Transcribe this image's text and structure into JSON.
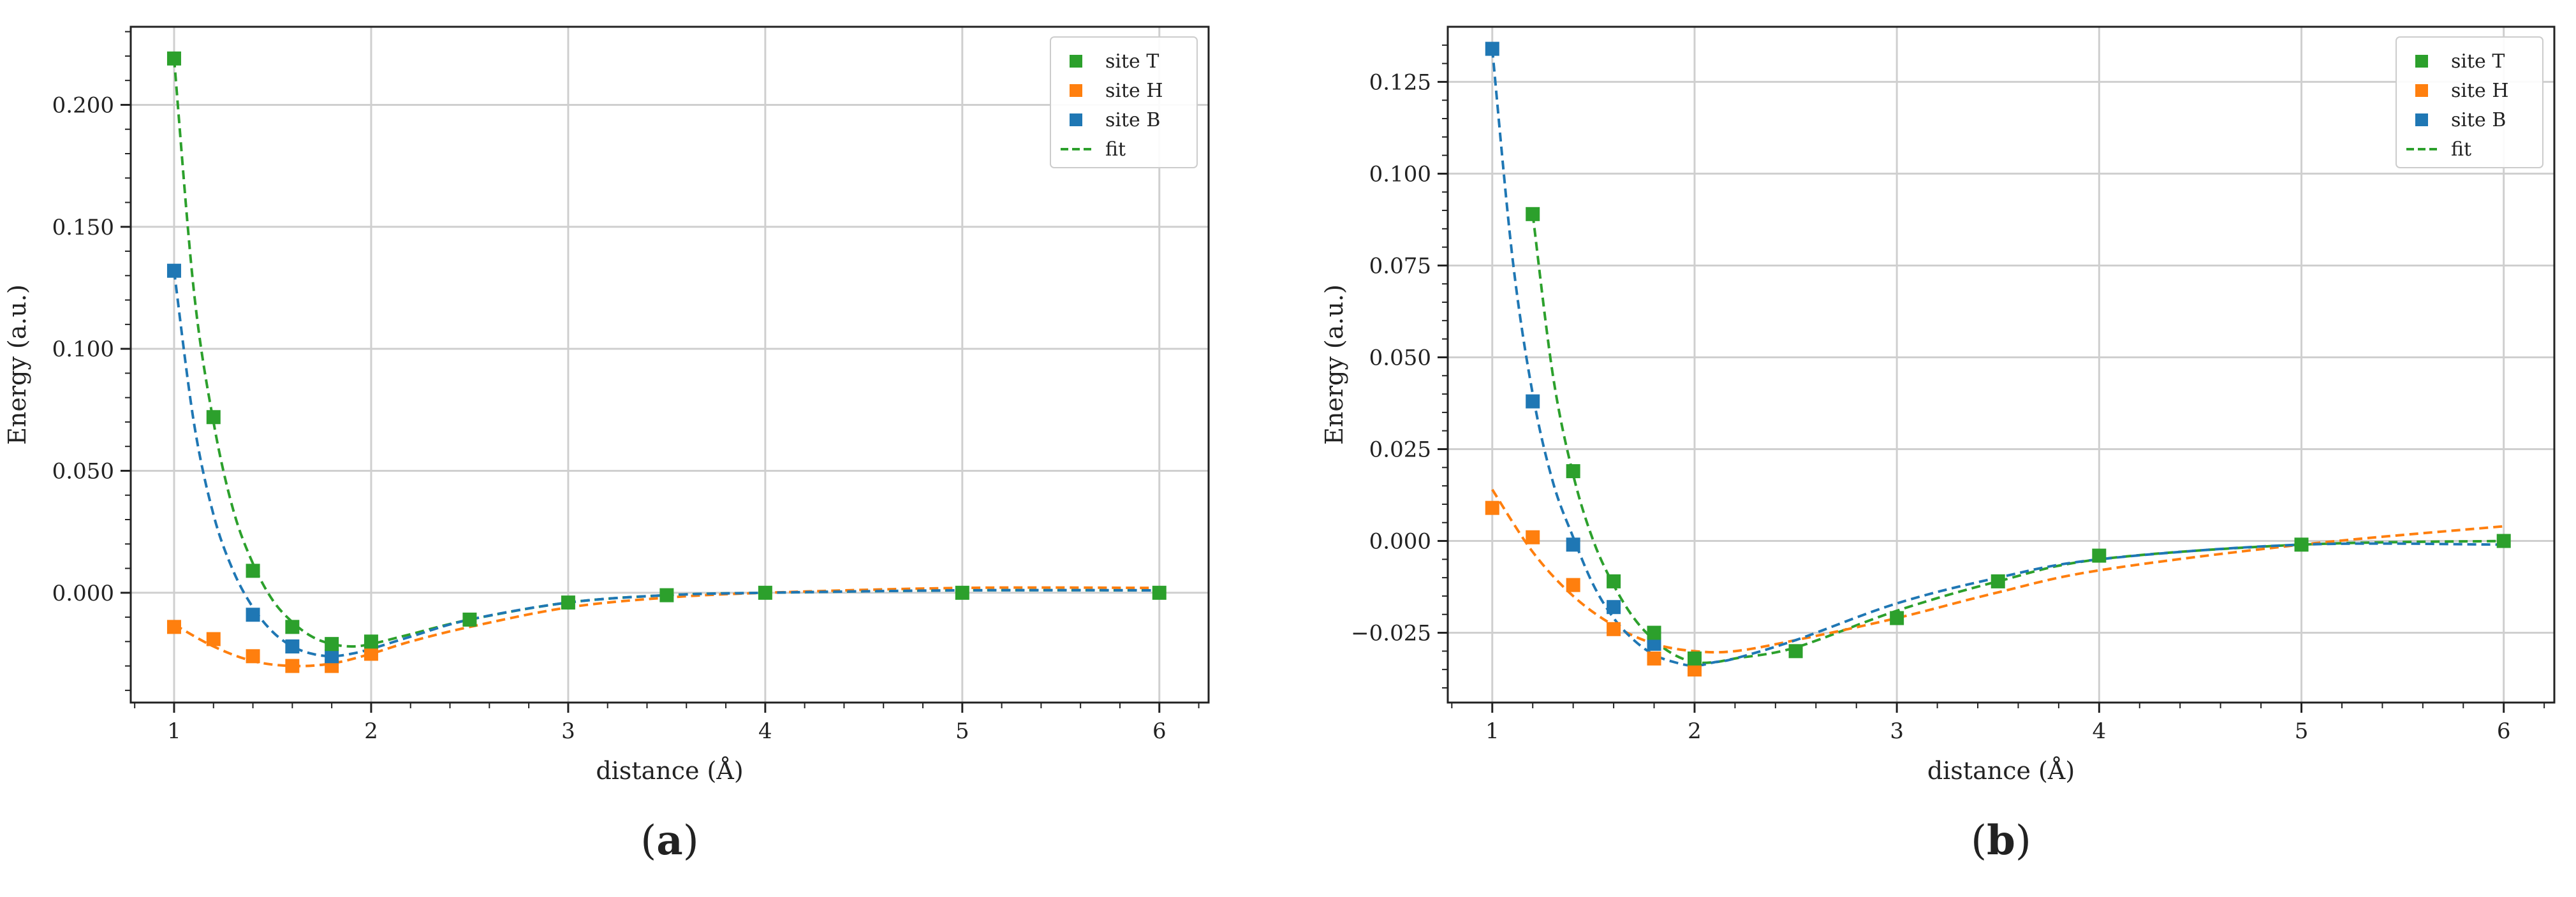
{
  "colors": {
    "site_T": "#2ca02c",
    "site_H": "#ff7f0e",
    "site_B": "#1f77b4",
    "grid": "#cfcfcf",
    "axis": "#222222"
  },
  "chart_data": [
    {
      "type": "scatter",
      "panel_label": "a",
      "xlabel": "distance (Å)",
      "ylabel": "Energy (a.u.)",
      "xlim": [
        0.78,
        6.25
      ],
      "ylim": [
        -0.045,
        0.232
      ],
      "xticks": [
        1,
        2,
        3,
        4,
        5,
        6
      ],
      "xtick_labels": [
        "1",
        "2",
        "3",
        "4",
        "5",
        "6"
      ],
      "yticks": [
        0.0,
        0.05,
        0.1,
        0.15,
        0.2
      ],
      "ytick_labels": [
        "0.000",
        "0.050",
        "0.100",
        "0.150",
        "0.200"
      ],
      "grid": true,
      "legend_position": "top-right",
      "legend": [
        "site T",
        "site H",
        "site B",
        "fit"
      ],
      "series": [
        {
          "name": "site T",
          "color_key": "site_T",
          "x": [
            1.0,
            1.2,
            1.4,
            1.6,
            1.8,
            2.0,
            2.5,
            3.0,
            3.5,
            4.0,
            5.0,
            6.0
          ],
          "y": [
            0.219,
            0.072,
            0.009,
            -0.014,
            -0.021,
            -0.02,
            -0.011,
            -0.004,
            -0.001,
            0.0,
            0.0,
            0.0
          ]
        },
        {
          "name": "site H",
          "color_key": "site_H",
          "x": [
            1.0,
            1.2,
            1.4,
            1.6,
            1.8,
            2.0
          ],
          "y": [
            -0.014,
            -0.019,
            -0.026,
            -0.03,
            -0.03,
            -0.025
          ]
        },
        {
          "name": "site B",
          "color_key": "site_B",
          "x": [
            1.0,
            1.4,
            1.6,
            1.8
          ],
          "y": [
            0.132,
            -0.009,
            -0.022,
            -0.026
          ]
        }
      ],
      "fits": [
        {
          "name": "fit",
          "color_key": "site_T",
          "x": [
            1.0,
            1.1,
            1.2,
            1.3,
            1.4,
            1.5,
            1.6,
            1.7,
            1.8,
            1.9,
            2.0,
            2.2,
            2.5,
            3.0,
            3.5,
            4.0,
            5.0,
            6.0
          ],
          "y": [
            0.219,
            0.124,
            0.07,
            0.034,
            0.012,
            -0.003,
            -0.012,
            -0.018,
            -0.021,
            -0.022,
            -0.021,
            -0.017,
            -0.011,
            -0.004,
            -0.001,
            0.0,
            0.001,
            0.001
          ]
        },
        {
          "name": "fit",
          "color_key": "site_H",
          "x": [
            1.0,
            1.2,
            1.4,
            1.6,
            1.8,
            2.0,
            2.2,
            2.5,
            3.0,
            3.5,
            4.0,
            5.0,
            6.0
          ],
          "y": [
            -0.013,
            -0.022,
            -0.028,
            -0.03,
            -0.029,
            -0.025,
            -0.02,
            -0.014,
            -0.006,
            -0.002,
            0.0,
            0.002,
            0.002
          ]
        },
        {
          "name": "fit",
          "color_key": "site_B",
          "x": [
            1.0,
            1.1,
            1.2,
            1.3,
            1.4,
            1.5,
            1.6,
            1.7,
            1.8,
            1.9,
            2.0,
            2.2,
            2.5,
            3.0,
            3.5,
            4.0,
            5.0,
            6.0
          ],
          "y": [
            0.132,
            0.07,
            0.032,
            0.009,
            -0.006,
            -0.016,
            -0.022,
            -0.025,
            -0.026,
            -0.025,
            -0.023,
            -0.018,
            -0.011,
            -0.004,
            -0.001,
            0.0,
            0.001,
            0.001
          ]
        }
      ]
    },
    {
      "type": "scatter",
      "panel_label": "b",
      "xlabel": "distance (Å)",
      "ylabel": "Energy (a.u.)",
      "xlim": [
        0.78,
        6.25
      ],
      "ylim": [
        -0.044,
        0.14
      ],
      "xticks": [
        1,
        2,
        3,
        4,
        5,
        6
      ],
      "xtick_labels": [
        "1",
        "2",
        "3",
        "4",
        "5",
        "6"
      ],
      "yticks": [
        -0.025,
        0.0,
        0.025,
        0.05,
        0.075,
        0.1,
        0.125
      ],
      "ytick_labels": [
        "−0.025",
        "0.000",
        "0.025",
        "0.050",
        "0.075",
        "0.100",
        "0.125"
      ],
      "grid": true,
      "legend_position": "top-right",
      "legend": [
        "site T",
        "site H",
        "site B",
        "fit"
      ],
      "series": [
        {
          "name": "site T",
          "color_key": "site_T",
          "x": [
            1.2,
            1.4,
            1.6,
            1.8,
            2.0,
            2.5,
            3.0,
            3.5,
            4.0,
            5.0,
            6.0
          ],
          "y": [
            0.089,
            0.019,
            -0.011,
            -0.025,
            -0.032,
            -0.03,
            -0.021,
            -0.011,
            -0.004,
            -0.001,
            0.0
          ]
        },
        {
          "name": "site H",
          "color_key": "site_H",
          "x": [
            1.0,
            1.2,
            1.4,
            1.6,
            1.8,
            2.0
          ],
          "y": [
            0.009,
            0.001,
            -0.012,
            -0.024,
            -0.032,
            -0.035
          ]
        },
        {
          "name": "site B",
          "color_key": "site_B",
          "x": [
            1.0,
            1.2,
            1.4,
            1.6,
            1.8
          ],
          "y": [
            0.134,
            0.038,
            -0.001,
            -0.018,
            -0.028
          ]
        }
      ],
      "fits": [
        {
          "name": "fit",
          "color_key": "site_T",
          "x": [
            1.2,
            1.3,
            1.4,
            1.5,
            1.6,
            1.7,
            1.8,
            1.9,
            2.0,
            2.1,
            2.2,
            2.5,
            3.0,
            3.5,
            4.0,
            5.0,
            6.0
          ],
          "y": [
            0.089,
            0.045,
            0.018,
            0.0,
            -0.012,
            -0.021,
            -0.027,
            -0.031,
            -0.033,
            -0.033,
            -0.032,
            -0.029,
            -0.019,
            -0.011,
            -0.005,
            -0.001,
            0.0
          ]
        },
        {
          "name": "fit",
          "color_key": "site_H",
          "x": [
            1.0,
            1.2,
            1.4,
            1.6,
            1.8,
            2.0,
            2.2,
            2.5,
            3.0,
            3.5,
            4.0,
            5.0,
            6.0
          ],
          "y": [
            0.014,
            -0.003,
            -0.015,
            -0.023,
            -0.028,
            -0.03,
            -0.03,
            -0.027,
            -0.021,
            -0.014,
            -0.008,
            -0.001,
            0.004
          ]
        },
        {
          "name": "fit",
          "color_key": "site_B",
          "x": [
            1.0,
            1.1,
            1.2,
            1.3,
            1.4,
            1.5,
            1.6,
            1.7,
            1.8,
            1.9,
            2.0,
            2.1,
            2.2,
            2.5,
            3.0,
            3.5,
            4.0,
            5.0,
            6.0
          ],
          "y": [
            0.134,
            0.077,
            0.04,
            0.016,
            0.001,
            -0.012,
            -0.021,
            -0.027,
            -0.031,
            -0.033,
            -0.034,
            -0.033,
            -0.032,
            -0.027,
            -0.017,
            -0.01,
            -0.005,
            -0.001,
            -0.001
          ]
        }
      ]
    }
  ]
}
